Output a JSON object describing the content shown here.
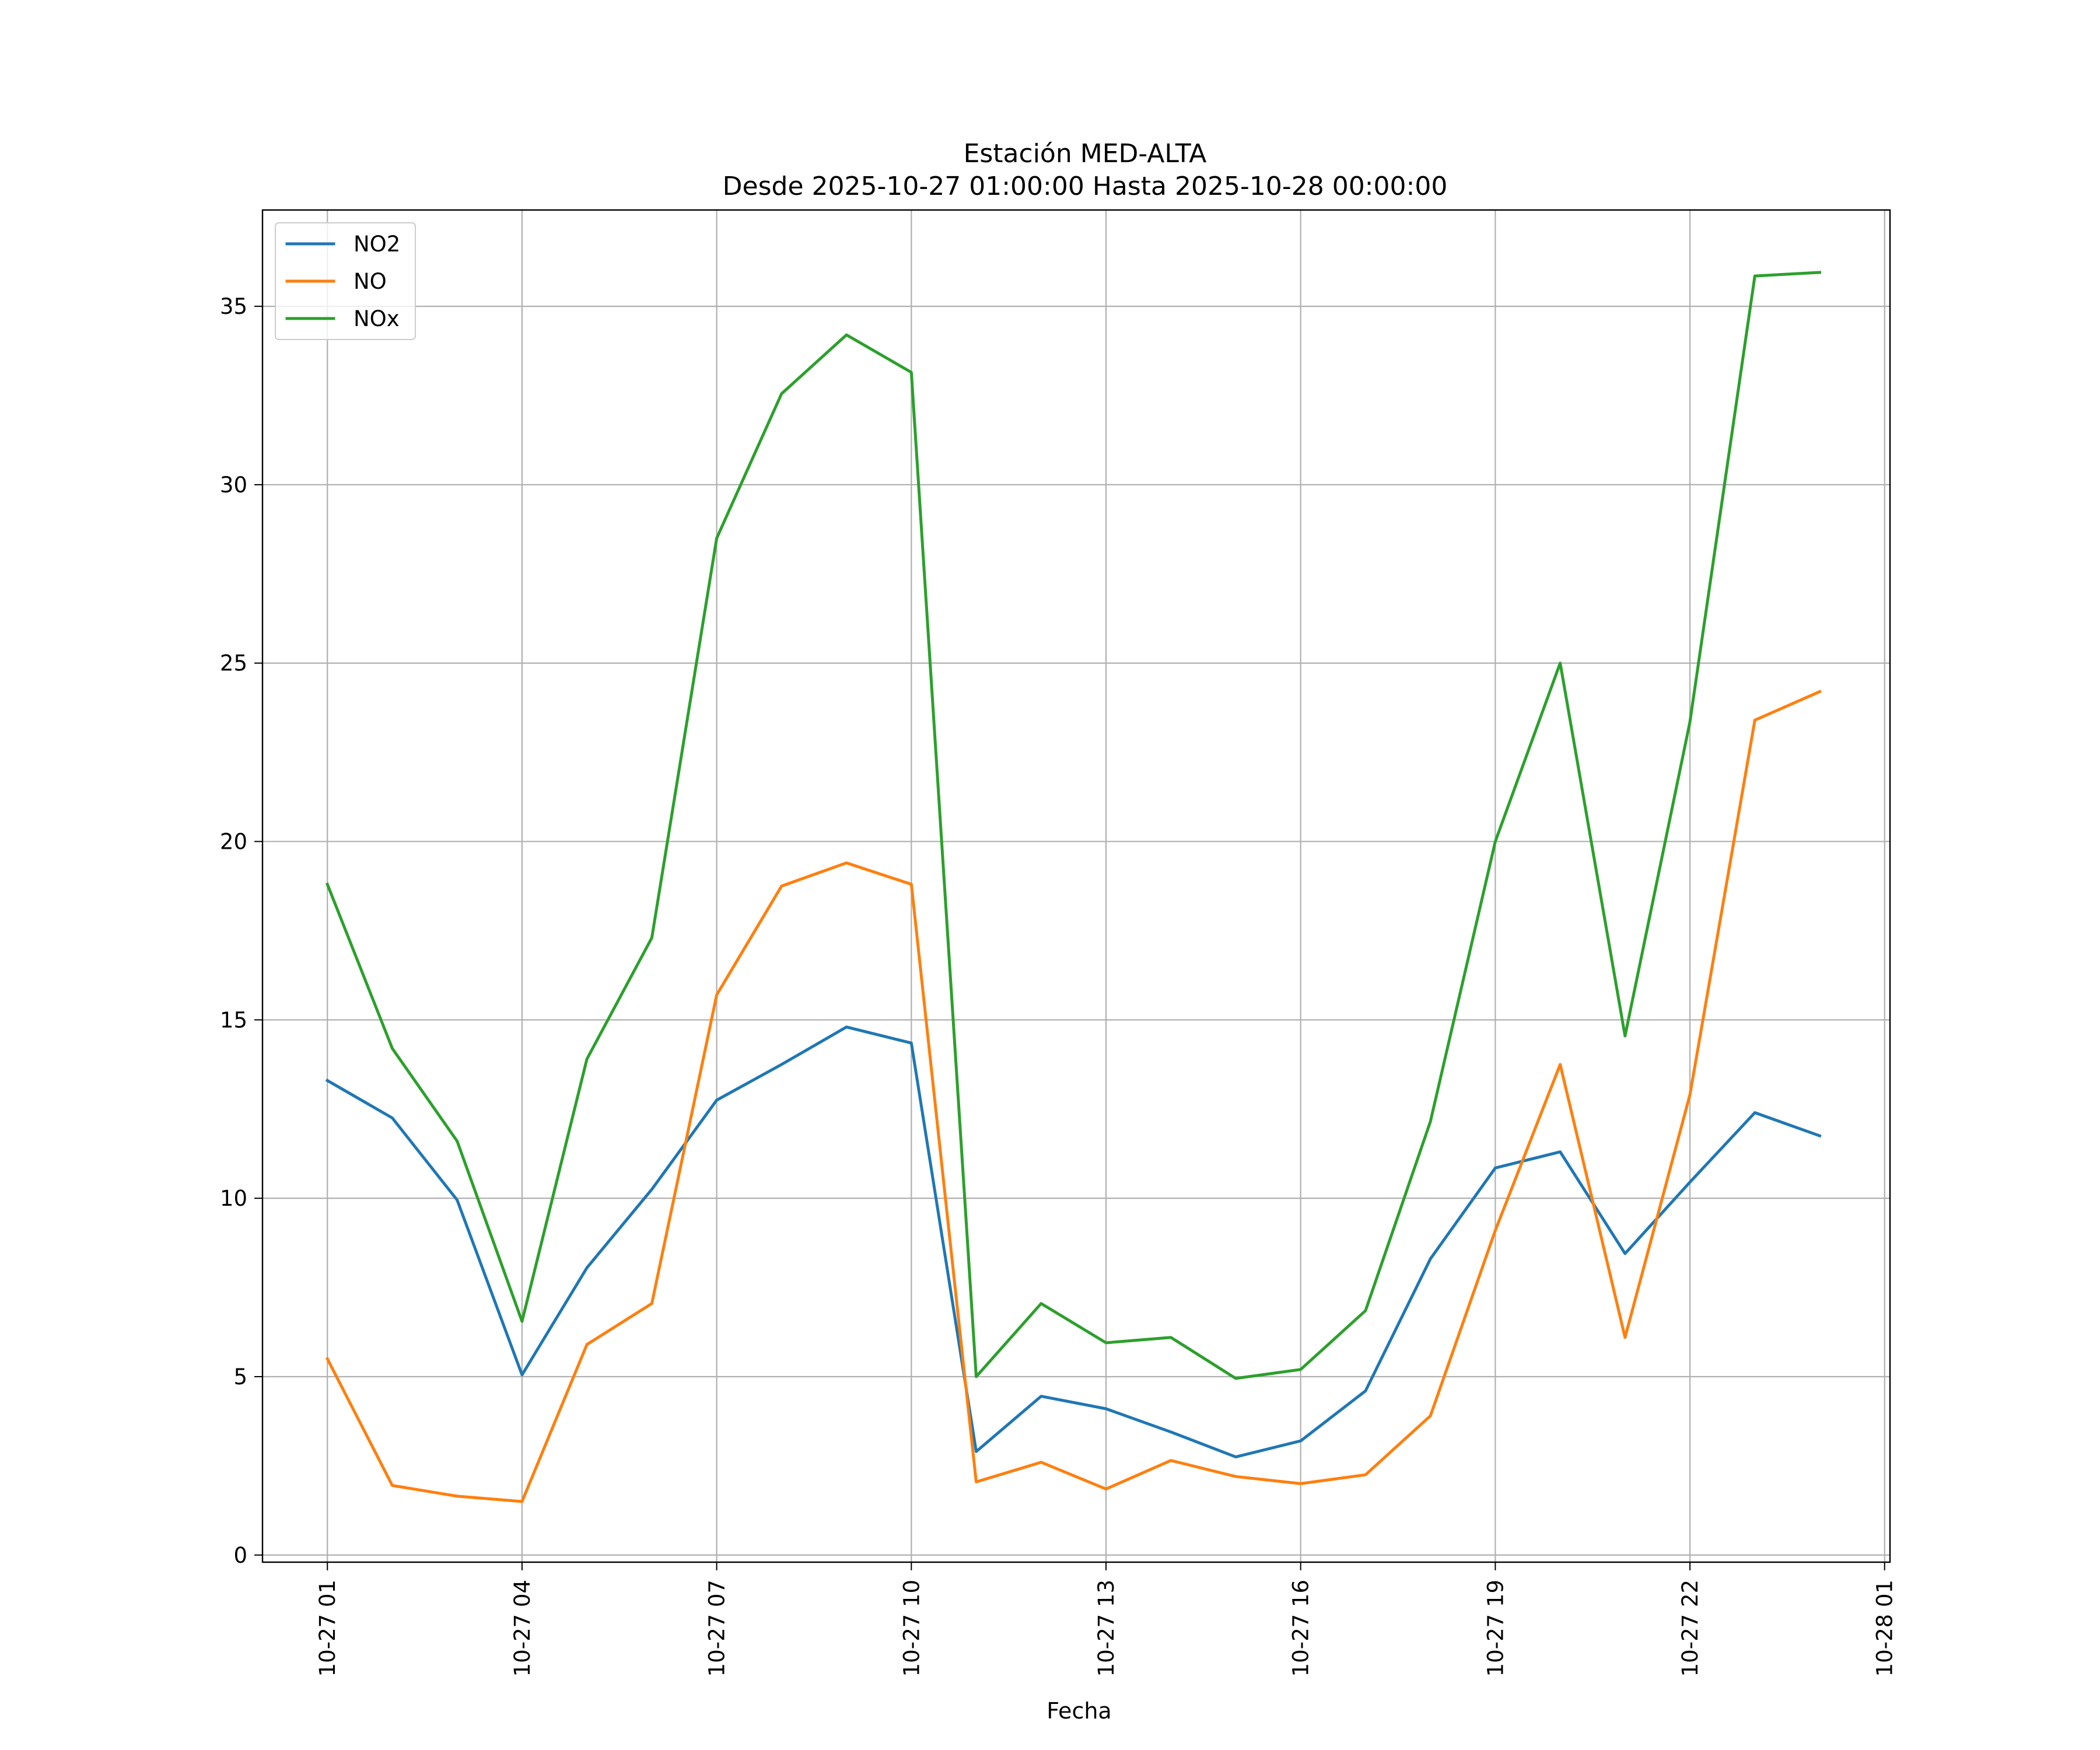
{
  "chart_data": {
    "type": "line",
    "title": "Estación MED-ALTA",
    "subtitle": "Desde 2025-10-27 01:00:00 Hasta 2025-10-28 00:00:00",
    "xlabel": "Fecha",
    "ylabel": "",
    "x": [
      "10-27 01",
      "10-27 02",
      "10-27 03",
      "10-27 04",
      "10-27 05",
      "10-27 06",
      "10-27 07",
      "10-27 08",
      "10-27 09",
      "10-27 10",
      "10-27 11",
      "10-27 12",
      "10-27 13",
      "10-27 14",
      "10-27 15",
      "10-27 16",
      "10-27 17",
      "10-27 18",
      "10-27 19",
      "10-27 20",
      "10-27 21",
      "10-27 22",
      "10-27 23",
      "10-28 00"
    ],
    "x_ticks": [
      "10-27 01",
      "10-27 04",
      "10-27 07",
      "10-27 10",
      "10-27 13",
      "10-27 16",
      "10-27 19",
      "10-27 22",
      "10-28 01"
    ],
    "y_ticks": [
      0,
      5,
      10,
      15,
      20,
      25,
      30,
      35
    ],
    "xlim": [
      "10-27 00:00",
      "10-28 01:05"
    ],
    "ylim": [
      -0.2,
      37.7
    ],
    "grid": true,
    "legend_position": "top-left",
    "series": [
      {
        "name": "NO2",
        "color": "#1f77b4",
        "values": [
          13.3,
          12.25,
          9.95,
          5.05,
          8.05,
          10.25,
          12.75,
          13.75,
          14.8,
          14.35,
          2.9,
          4.45,
          4.1,
          3.45,
          2.75,
          3.2,
          4.6,
          8.3,
          10.85,
          11.3,
          8.45,
          10.45,
          12.4,
          11.75
        ]
      },
      {
        "name": "NO",
        "color": "#ff7f0e",
        "values": [
          5.5,
          1.95,
          1.65,
          1.5,
          5.9,
          7.05,
          15.7,
          18.75,
          19.4,
          18.8,
          2.05,
          2.6,
          1.85,
          2.65,
          2.2,
          2.0,
          2.25,
          3.9,
          9.1,
          13.75,
          6.1,
          12.9,
          23.4,
          24.2
        ]
      },
      {
        "name": "NOx",
        "color": "#2ca02c",
        "values": [
          18.8,
          14.2,
          11.6,
          6.55,
          13.9,
          17.3,
          28.5,
          32.55,
          34.2,
          33.15,
          5.0,
          7.05,
          5.95,
          6.1,
          4.95,
          5.2,
          6.85,
          12.15,
          20.0,
          25.0,
          14.55,
          23.35,
          35.85,
          35.95
        ]
      }
    ]
  }
}
